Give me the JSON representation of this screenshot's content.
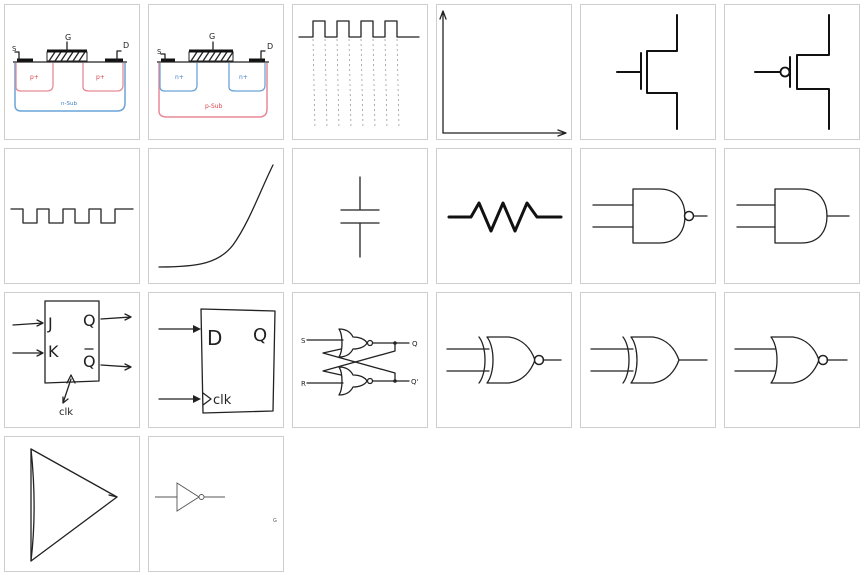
{
  "tiles": [
    {
      "id": "pmos-cross-section",
      "labels": {
        "source": "S",
        "gate": "G",
        "drain": "D",
        "left_well": "p+",
        "right_well": "p+",
        "substrate": "n-Sub"
      }
    },
    {
      "id": "nmos-cross-section",
      "labels": {
        "source": "S",
        "gate": "G",
        "drain": "D",
        "left_well": "n+",
        "right_well": "n+",
        "substrate": "p-Sub"
      }
    },
    {
      "id": "clock-wave-with-guides"
    },
    {
      "id": "xy-axes"
    },
    {
      "id": "nmos-symbol"
    },
    {
      "id": "pmos-symbol"
    },
    {
      "id": "square-wave"
    },
    {
      "id": "exponential-curve"
    },
    {
      "id": "capacitor-symbol"
    },
    {
      "id": "resistor-symbol"
    },
    {
      "id": "nand-gate"
    },
    {
      "id": "and-gate"
    },
    {
      "id": "jk-flip-flop",
      "labels": {
        "j": "J",
        "k": "K",
        "q": "Q",
        "qbar": "Q",
        "clk": "clk"
      }
    },
    {
      "id": "d-flip-flop",
      "labels": {
        "d": "D",
        "q": "Q",
        "clk": "clk"
      }
    },
    {
      "id": "sr-latch",
      "labels": {
        "s": "S",
        "r": "R",
        "q": "Q",
        "qprime": "Q'"
      }
    },
    {
      "id": "xnor-gate"
    },
    {
      "id": "xor-gate"
    },
    {
      "id": "nor-gate"
    },
    {
      "id": "buffer-triangle"
    },
    {
      "id": "not-gate",
      "labels": {
        "corner": "G"
      }
    }
  ],
  "colors": {
    "pink": "#e88a96",
    "blue": "#6aa3d8",
    "red": "#d9414a",
    "stroke": "#222222",
    "guide": "#9a9a9a"
  }
}
